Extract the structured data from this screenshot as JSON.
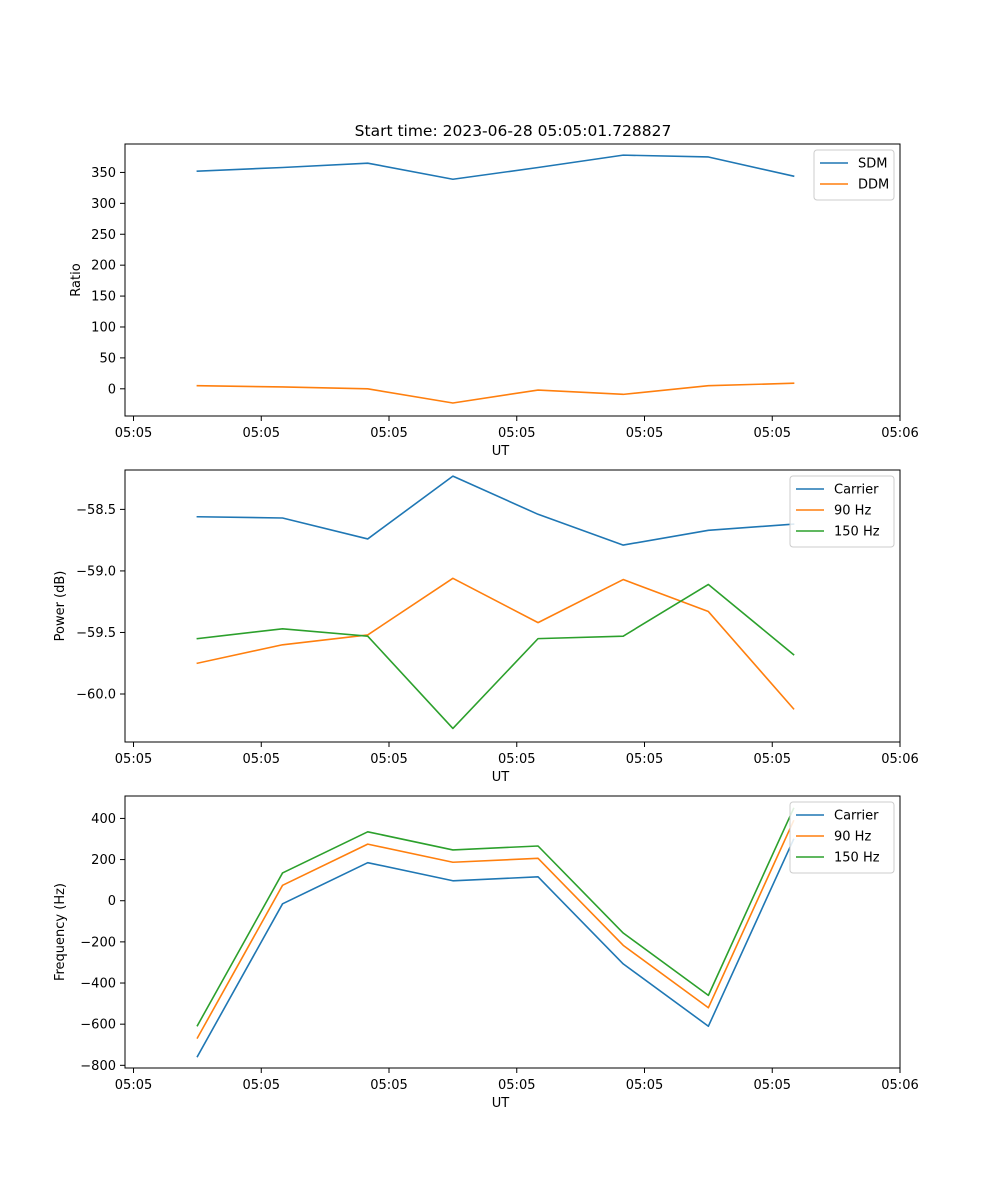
{
  "figure": {
    "title": "Start time: 2023-06-28 05:05:01.728827"
  },
  "chart_data": [
    {
      "type": "line",
      "title": "Start time: 2023-06-28 05:05:01.728827",
      "xlabel": "UT",
      "ylabel": "Ratio",
      "xlim": [
        -0.5,
        8.6
      ],
      "ylim": [
        -44,
        396
      ],
      "x_ticks": [
        {
          "value": -0.4,
          "label": "05:05"
        },
        {
          "value": 1.1,
          "label": "05:05"
        },
        {
          "value": 2.6,
          "label": "05:05"
        },
        {
          "value": 4.1,
          "label": "05:05"
        },
        {
          "value": 5.6,
          "label": "05:05"
        },
        {
          "value": 7.1,
          "label": "05:05"
        },
        {
          "value": 8.6,
          "label": "05:06"
        }
      ],
      "y_ticks": [
        0,
        50,
        100,
        150,
        200,
        250,
        300,
        350
      ],
      "legend_position": "top-right",
      "series": [
        {
          "name": "SDM",
          "color": "#1f77b4",
          "x": [
            0.35,
            1.35,
            2.35,
            3.35,
            4.35,
            5.35,
            6.35,
            7.35
          ],
          "values": [
            352,
            358,
            365,
            339,
            358,
            378,
            375,
            344
          ]
        },
        {
          "name": "DDM",
          "color": "#ff7f0e",
          "x": [
            0.35,
            1.35,
            2.35,
            3.35,
            4.35,
            5.35,
            6.35,
            7.35
          ],
          "values": [
            5,
            3,
            0,
            -23,
            -2,
            -9,
            5,
            9
          ]
        }
      ]
    },
    {
      "type": "line",
      "xlabel": "UT",
      "ylabel": "Power (dB)",
      "xlim": [
        -0.5,
        8.6
      ],
      "ylim": [
        -60.39,
        -58.18
      ],
      "x_ticks": [
        {
          "value": -0.4,
          "label": "05:05"
        },
        {
          "value": 1.1,
          "label": "05:05"
        },
        {
          "value": 2.6,
          "label": "05:05"
        },
        {
          "value": 4.1,
          "label": "05:05"
        },
        {
          "value": 5.6,
          "label": "05:05"
        },
        {
          "value": 7.1,
          "label": "05:05"
        },
        {
          "value": 8.6,
          "label": "05:06"
        }
      ],
      "y_ticks": [
        -58.5,
        -59.0,
        -59.5,
        -60.0
      ],
      "y_tick_labels": [
        "−58.5",
        "−59.0",
        "−59.5",
        "−60.0"
      ],
      "legend_position": "top-right",
      "series": [
        {
          "name": "Carrier",
          "color": "#1f77b4",
          "x": [
            0.35,
            1.35,
            2.35,
            3.35,
            4.35,
            5.35,
            6.35,
            7.35
          ],
          "values": [
            -58.56,
            -58.57,
            -58.74,
            -58.23,
            -58.54,
            -58.79,
            -58.67,
            -58.62
          ]
        },
        {
          "name": "90 Hz",
          "color": "#ff7f0e",
          "x": [
            0.35,
            1.35,
            2.35,
            3.35,
            4.35,
            5.35,
            6.35,
            7.35
          ],
          "values": [
            -59.75,
            -59.6,
            -59.52,
            -59.06,
            -59.42,
            -59.07,
            -59.33,
            -60.12
          ]
        },
        {
          "name": "150 Hz",
          "color": "#2ca02c",
          "x": [
            0.35,
            1.35,
            2.35,
            3.35,
            4.35,
            5.35,
            6.35,
            7.35
          ],
          "values": [
            -59.55,
            -59.47,
            -59.53,
            -60.28,
            -59.55,
            -59.53,
            -59.11,
            -59.68
          ]
        }
      ]
    },
    {
      "type": "line",
      "xlabel": "UT",
      "ylabel": "Frequency (Hz)",
      "xlim": [
        -0.5,
        8.6
      ],
      "ylim": [
        -813,
        509
      ],
      "x_ticks": [
        {
          "value": -0.4,
          "label": "05:05"
        },
        {
          "value": 1.1,
          "label": "05:05"
        },
        {
          "value": 2.6,
          "label": "05:05"
        },
        {
          "value": 4.1,
          "label": "05:05"
        },
        {
          "value": 5.6,
          "label": "05:05"
        },
        {
          "value": 7.1,
          "label": "05:05"
        },
        {
          "value": 8.6,
          "label": "05:06"
        }
      ],
      "y_ticks": [
        400,
        200,
        0,
        -200,
        -400,
        -600,
        -800
      ],
      "y_tick_labels": [
        "400",
        "200",
        "0",
        "−200",
        "−400",
        "−600",
        "−800"
      ],
      "legend_position": "top-right",
      "series": [
        {
          "name": "Carrier",
          "color": "#1f77b4",
          "x": [
            0.35,
            1.35,
            2.35,
            3.35,
            4.35,
            5.35,
            6.35,
            7.35
          ],
          "values": [
            -757,
            -15,
            185,
            97,
            116,
            -307,
            -610,
            298
          ]
        },
        {
          "name": "90 Hz",
          "color": "#ff7f0e",
          "x": [
            0.35,
            1.35,
            2.35,
            3.35,
            4.35,
            5.35,
            6.35,
            7.35
          ],
          "values": [
            -667,
            75,
            275,
            187,
            206,
            -217,
            -520,
            388
          ]
        },
        {
          "name": "150 Hz",
          "color": "#2ca02c",
          "x": [
            0.35,
            1.35,
            2.35,
            3.35,
            4.35,
            5.35,
            6.35,
            7.35
          ],
          "values": [
            -607,
            135,
            335,
            247,
            266,
            -157,
            -460,
            448
          ]
        }
      ]
    }
  ]
}
